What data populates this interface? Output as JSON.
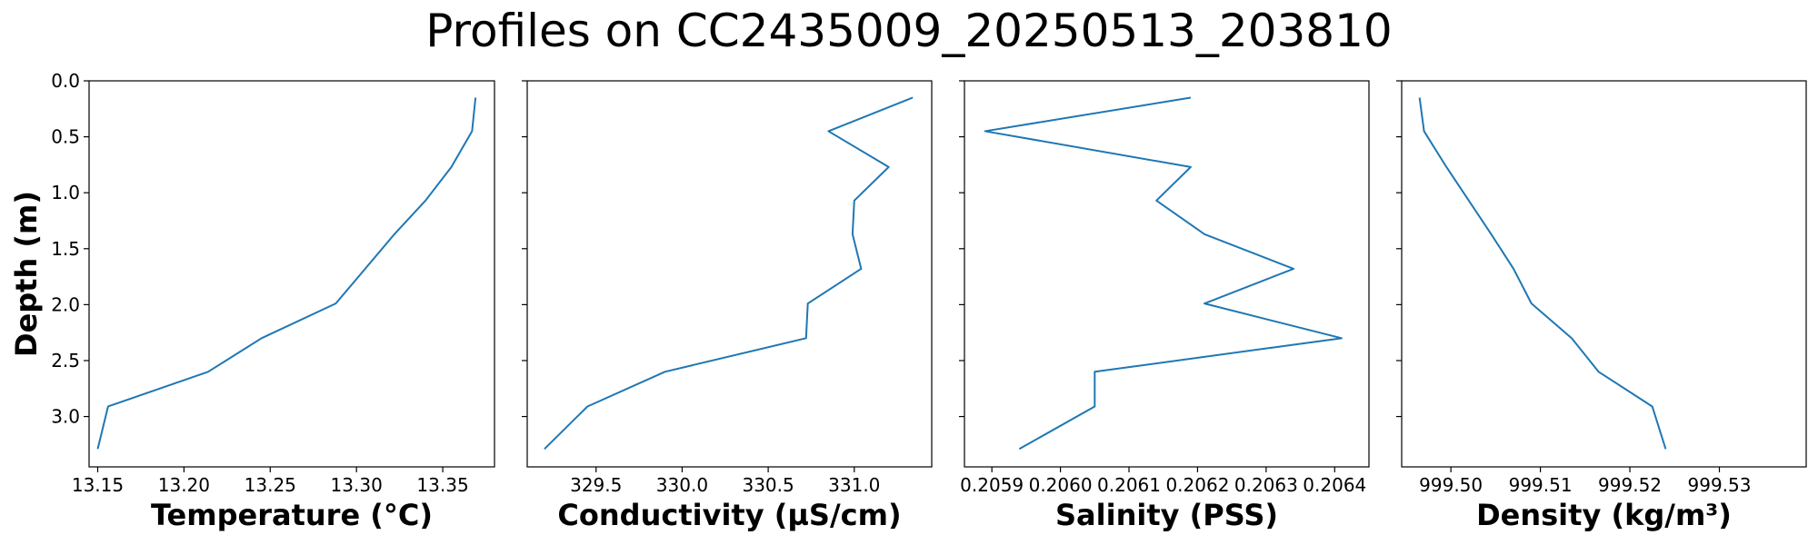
{
  "title": "Profiles on CC2435009_20250513_203810",
  "colors": {
    "line": "#1f77b4",
    "axes": "#000000",
    "background": "#ffffff"
  },
  "chart_data": [
    {
      "type": "line",
      "xlabel": "Temperature (°C)",
      "ylabel": "Depth (m)",
      "y_inverted": true,
      "ylim": [
        3.45,
        0.0
      ],
      "yticks": [
        0.0,
        0.5,
        1.0,
        1.5,
        2.0,
        2.5,
        3.0
      ],
      "ytick_labels": [
        "0.0",
        "0.5",
        "1.0",
        "1.5",
        "2.0",
        "2.5",
        "3.0"
      ],
      "xlim": [
        13.145,
        13.38
      ],
      "xticks": [
        13.15,
        13.2,
        13.25,
        13.3,
        13.35
      ],
      "xtick_labels": [
        "13.15",
        "13.20",
        "13.25",
        "13.30",
        "13.35"
      ],
      "x": [
        13.369,
        13.367,
        13.355,
        13.34,
        13.322,
        13.305,
        13.288,
        13.245,
        13.214,
        13.156,
        13.15
      ],
      "y": [
        0.15,
        0.45,
        0.77,
        1.07,
        1.37,
        1.68,
        1.99,
        2.3,
        2.6,
        2.91,
        3.29
      ],
      "grid": false
    },
    {
      "type": "line",
      "xlabel": "Conductivity (µS/cm)",
      "y_inverted": true,
      "ylim": [
        3.45,
        0.0
      ],
      "yticks": [
        0.0,
        0.5,
        1.0,
        1.5,
        2.0,
        2.5,
        3.0
      ],
      "xlim": [
        329.1,
        331.45
      ],
      "xticks": [
        329.5,
        330.0,
        330.5,
        331.0
      ],
      "xtick_labels": [
        "329.5",
        "330.0",
        "330.5",
        "331.0"
      ],
      "x": [
        331.34,
        330.85,
        331.2,
        331.0,
        330.99,
        331.04,
        330.73,
        330.72,
        329.9,
        329.45,
        329.2
      ],
      "y": [
        0.15,
        0.45,
        0.77,
        1.07,
        1.37,
        1.68,
        1.99,
        2.3,
        2.6,
        2.91,
        3.29
      ],
      "grid": false
    },
    {
      "type": "line",
      "xlabel": "Salinity (PSS)",
      "y_inverted": true,
      "ylim": [
        3.45,
        0.0
      ],
      "yticks": [
        0.0,
        0.5,
        1.0,
        1.5,
        2.0,
        2.5,
        3.0
      ],
      "xlim": [
        0.20586,
        0.20645
      ],
      "xticks": [
        0.2059,
        0.206,
        0.2061,
        0.2062,
        0.2063,
        0.2064
      ],
      "xtick_labels": [
        "0.2059",
        "0.2060",
        "0.2061",
        "0.2062",
        "0.2063",
        "0.2064"
      ],
      "x": [
        0.20619,
        0.20589,
        0.20619,
        0.20614,
        0.20621,
        0.20634,
        0.20621,
        0.20641,
        0.20605,
        0.20605,
        0.20594
      ],
      "y": [
        0.15,
        0.45,
        0.77,
        1.07,
        1.37,
        1.68,
        1.99,
        2.3,
        2.6,
        2.91,
        3.29
      ],
      "grid": false
    },
    {
      "type": "line",
      "xlabel": "Density (kg/m³)",
      "y_inverted": true,
      "ylim": [
        3.45,
        0.0
      ],
      "yticks": [
        0.0,
        0.5,
        1.0,
        1.5,
        2.0,
        2.5,
        3.0
      ],
      "xlim": [
        999.4945,
        999.5397
      ],
      "xticks": [
        999.5,
        999.51,
        999.52,
        999.53
      ],
      "xtick_labels": [
        "999.50",
        "999.51",
        "999.52",
        "999.53"
      ],
      "x": [
        999.4965,
        999.497,
        999.4995,
        999.502,
        999.5045,
        999.507,
        999.509,
        999.5135,
        999.5165,
        999.5225,
        999.524
      ],
      "y": [
        0.15,
        0.45,
        0.77,
        1.07,
        1.37,
        1.68,
        1.99,
        2.3,
        2.6,
        2.91,
        3.29
      ],
      "grid": false
    }
  ]
}
